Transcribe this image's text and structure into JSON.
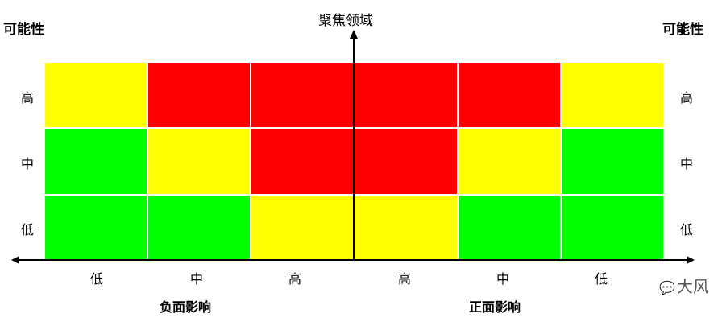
{
  "titles": {
    "left": "可能性",
    "right": "可能性",
    "top": "聚焦领域"
  },
  "colors": {
    "green": "#00ff00",
    "yellow": "#ffff00",
    "red": "#ff0000"
  },
  "row_labels": [
    "高",
    "中",
    "低"
  ],
  "col_labels": [
    "低",
    "中",
    "高",
    "高",
    "中",
    "低"
  ],
  "section_labels": {
    "negative": "负面影响",
    "positive": "正面影响"
  },
  "grid": [
    [
      "yellow",
      "red",
      "red",
      "red",
      "red",
      "yellow"
    ],
    [
      "green",
      "yellow",
      "red",
      "red",
      "yellow",
      "green"
    ],
    [
      "green",
      "green",
      "yellow",
      "yellow",
      "green",
      "green"
    ]
  ],
  "watermark": {
    "icon": "wechat-icon",
    "text": "大风"
  }
}
